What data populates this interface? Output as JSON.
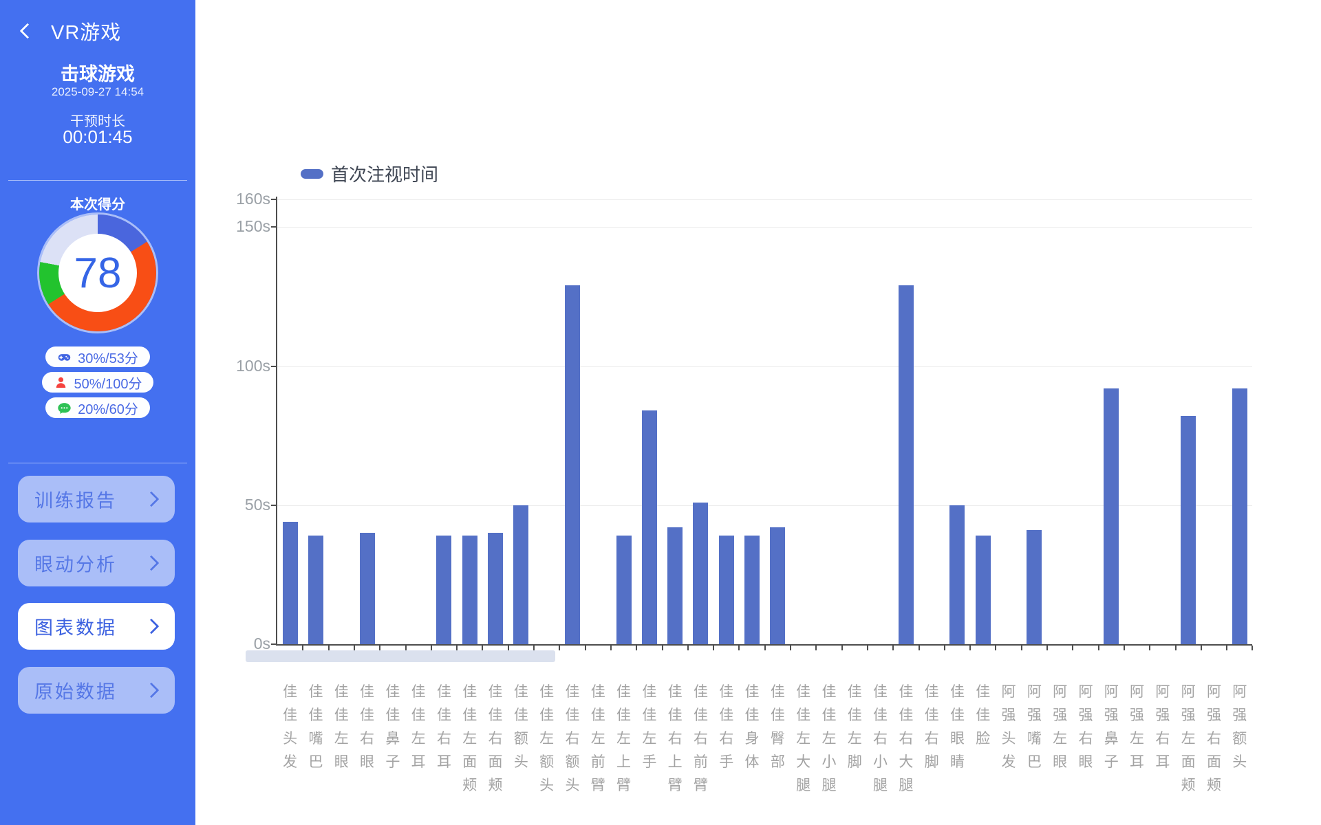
{
  "sidebar": {
    "back_label": "VR游戏",
    "game_title": "击球游戏",
    "timestamp": "2025-09-27 14:54",
    "duration_label": "干预时长",
    "duration_value": "00:01:45",
    "score_label": "本次得分",
    "score_value": "78",
    "score_ring": [
      {
        "name": "game-score-segment",
        "color": "#4a66dd",
        "pct": 16
      },
      {
        "name": "interaction-score-segment",
        "color": "#f84e15",
        "pct": 50
      },
      {
        "name": "voice-score-segment",
        "color": "#22c32e",
        "pct": 12
      },
      {
        "name": "remainder-segment",
        "color": "#dce1f6",
        "pct": 22
      }
    ],
    "badges": [
      {
        "icon": "gamepad-icon",
        "color": "#4165e2",
        "text": "30%/53分"
      },
      {
        "icon": "person-icon",
        "color": "#f5423e",
        "text": "50%/100分"
      },
      {
        "icon": "speech-bubble-icon",
        "color": "#2ec155",
        "text": "20%/60分"
      }
    ],
    "nav": [
      {
        "label": "训练报告",
        "active": false
      },
      {
        "label": "眼动分析",
        "active": false
      },
      {
        "label": "图表数据",
        "active": true
      },
      {
        "label": "原始数据",
        "active": false
      }
    ]
  },
  "chart_data": {
    "type": "bar",
    "title": "",
    "legend": "首次注视时间",
    "unit": "s",
    "ylim": [
      0,
      160
    ],
    "yticks": [
      0,
      50,
      100,
      150,
      160
    ],
    "grid": true,
    "legend_position": "top",
    "bar_color": "#5470c6",
    "categories": [
      "佳佳头发",
      "佳佳嘴巴",
      "佳佳左眼",
      "佳佳右眼",
      "佳佳鼻子",
      "佳佳左耳",
      "佳佳右耳",
      "佳佳左面颊",
      "佳佳右面颊",
      "佳佳额头",
      "佳佳左额头",
      "佳佳右额头",
      "佳佳左前臂",
      "佳佳左上臂",
      "佳佳左手",
      "佳佳右上臂",
      "佳佳右前臂",
      "佳佳右手",
      "佳佳身体",
      "佳佳臀部",
      "佳佳左大腿",
      "佳佳左小腿",
      "佳佳左脚",
      "佳佳右小腿",
      "佳佳右大腿",
      "佳佳右脚",
      "佳佳眼睛",
      "佳佳脸",
      "阿强头发",
      "阿强嘴巴",
      "阿强左眼",
      "阿强右眼",
      "阿强鼻子",
      "阿强左耳",
      "阿强右耳",
      "阿强左面颊",
      "阿强右面颊",
      "阿强额头"
    ],
    "values": [
      44,
      39,
      0,
      40,
      0,
      0,
      39,
      39,
      40,
      50,
      0,
      129,
      0,
      39,
      84,
      42,
      51,
      39,
      39,
      42,
      0,
      0,
      0,
      0,
      129,
      0,
      50,
      39,
      0,
      41,
      0,
      0,
      92,
      0,
      0,
      82,
      0,
      92
    ]
  },
  "colors": {
    "sidebar_bg": "#4470f0",
    "bar": "#5470c6",
    "scrollbar": "#dbe1ee",
    "score_number": "#3565e6",
    "axis_line": "#4d4d4d",
    "axis_label": "#9aa0a6"
  }
}
